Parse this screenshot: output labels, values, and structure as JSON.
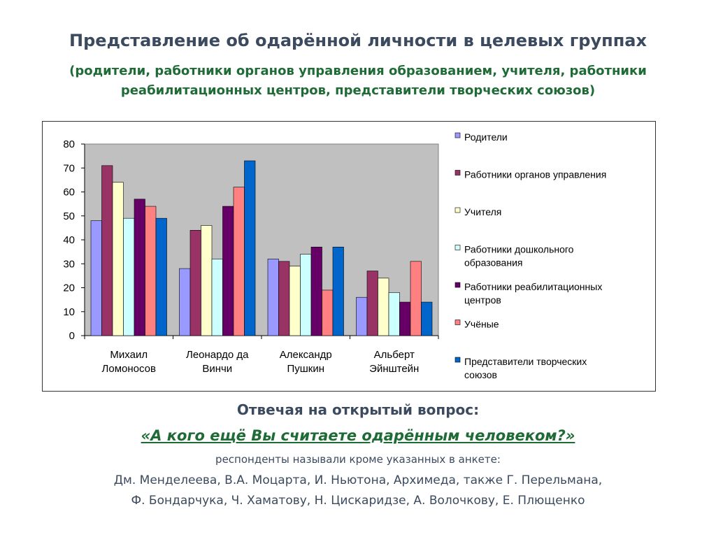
{
  "page": {
    "title": "Представление об одарённой личности в целевых группах",
    "subtitle": "(родители, работники органов управления образованием, учителя, работники реабилитационных центров, представители творческих союзов)",
    "question_intro": "Отвечая на открытый вопрос:",
    "question": "«А кого ещё Вы считаете одарённым человеком?»",
    "note": "респонденты называли кроме указанных в анкете:",
    "answer_line1": "Дм. Менделеева, В.А. Моцарта, И. Ньютона, Архимеда,  также  Г. Перельмана,",
    "answer_line2": "Ф. Бондарчука, Ч. Хаматову, Н. Цискаридзе, А. Волочкову, Е. Плющенко"
  },
  "chart_data": {
    "type": "bar",
    "categories": [
      [
        "Михаил",
        "Ломоносов"
      ],
      [
        "Леонардо да",
        "Винчи"
      ],
      [
        "Александр",
        "Пушкин"
      ],
      [
        "Альберт",
        "Эйнштейн"
      ]
    ],
    "ylim": [
      0,
      80
    ],
    "yticks": [
      0,
      10,
      20,
      30,
      40,
      50,
      60,
      70,
      80
    ],
    "grid": false,
    "plot_background": "#c0c0c0",
    "legend_position": "right",
    "series": [
      {
        "name": "Родители",
        "color": "#9999ff",
        "values": [
          48,
          28,
          32,
          16
        ]
      },
      {
        "name": "Работники органов управления",
        "color": "#993366",
        "values": [
          71,
          44,
          31,
          27
        ]
      },
      {
        "name": "Учителя",
        "color": "#ffffcc",
        "values": [
          64,
          46,
          29,
          24
        ]
      },
      {
        "name": "Работники дошкольного образования",
        "color": "#ccffff",
        "values": [
          49,
          32,
          34,
          18
        ]
      },
      {
        "name": "Работники реабилитационных центров",
        "color": "#660066",
        "values": [
          57,
          54,
          37,
          14
        ]
      },
      {
        "name": "Учёные",
        "color": "#ff8080",
        "values": [
          54,
          62,
          19,
          31
        ]
      },
      {
        "name": "Представители творческих союзов",
        "color": "#0066cc",
        "values": [
          49,
          73,
          37,
          14
        ]
      }
    ]
  }
}
